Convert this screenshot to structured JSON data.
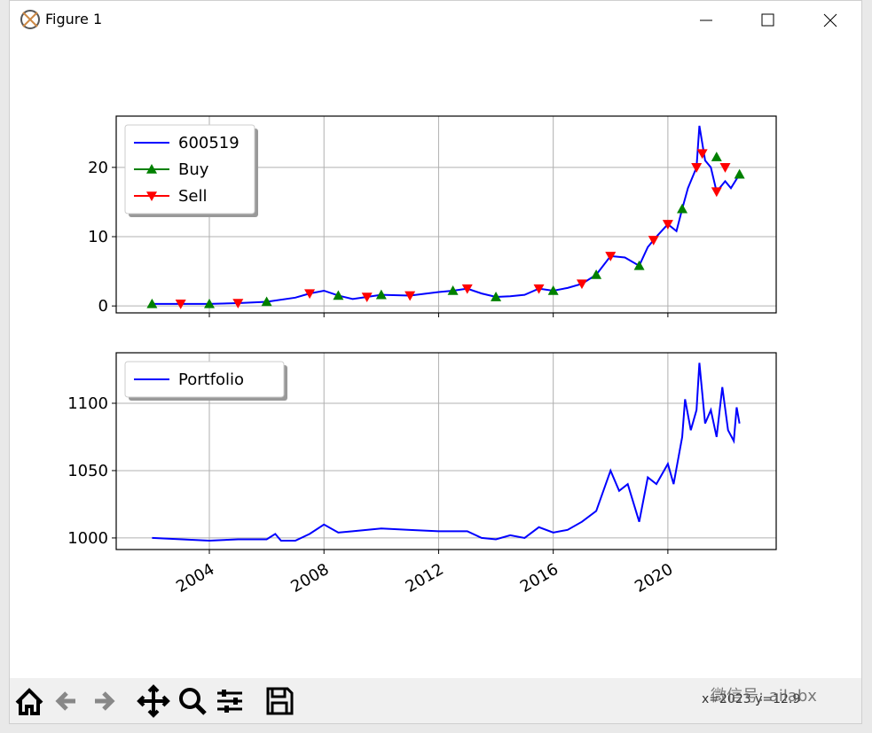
{
  "window": {
    "title": "Figure 1",
    "status": "x=2023 y=12.9",
    "watermark": "微信号: ailabx"
  },
  "chart_data": [
    {
      "type": "line",
      "legend": "upper left",
      "grid": true,
      "show_xtick_labels": false,
      "xlim": [
        2000.75,
        2023.78
      ],
      "ylim": [
        -1,
        27.4
      ],
      "xticks": [
        2004,
        2008,
        2012,
        2016,
        2020
      ],
      "yticks": [
        0,
        10,
        20
      ],
      "series": [
        {
          "name": "600519",
          "color": "#0000ff",
          "x": [
            2002,
            2003,
            2004,
            2005,
            2006,
            2007,
            2007.5,
            2008,
            2008.5,
            2009,
            2009.5,
            2010,
            2011,
            2012,
            2012.5,
            2013,
            2013.5,
            2014,
            2014.5,
            2015,
            2015.5,
            2016,
            2016.5,
            2017,
            2017.5,
            2018,
            2018.5,
            2019,
            2019.3,
            2019.6,
            2020,
            2020.3,
            2020.5,
            2020.7,
            2021,
            2021.1,
            2021.3,
            2021.5,
            2021.7,
            2022,
            2022.2,
            2022.5
          ],
          "values": [
            0.3,
            0.3,
            0.3,
            0.4,
            0.6,
            1.2,
            1.8,
            2.2,
            1.5,
            1.0,
            1.3,
            1.6,
            1.5,
            2.0,
            2.2,
            2.5,
            1.8,
            1.3,
            1.4,
            1.6,
            2.5,
            2.2,
            2.6,
            3.2,
            4.5,
            7.2,
            7.0,
            5.8,
            8.5,
            10.0,
            11.8,
            10.8,
            14,
            17,
            20,
            26,
            21,
            20,
            16.5,
            18,
            17,
            19
          ]
        },
        {
          "name": "Buy",
          "color": "#008000",
          "marker": "^",
          "x": [
            2002,
            2004,
            2006,
            2008.5,
            2010,
            2012.5,
            2014,
            2016,
            2017.5,
            2019,
            2020.5,
            2021.7,
            2022.5
          ],
          "values": [
            0.3,
            0.3,
            0.6,
            1.5,
            1.6,
            2.2,
            1.3,
            2.2,
            4.5,
            5.8,
            14,
            21.5,
            19
          ]
        },
        {
          "name": "Sell",
          "color": "#ff0000",
          "marker": "v",
          "x": [
            2003,
            2005,
            2007.5,
            2009.5,
            2011,
            2013,
            2015.5,
            2017,
            2018,
            2019.5,
            2020,
            2021,
            2021.2,
            2021.7,
            2022
          ],
          "values": [
            0.3,
            0.4,
            1.8,
            1.3,
            1.5,
            2.5,
            2.5,
            3.2,
            7.2,
            9.5,
            11.8,
            20,
            22,
            16.5,
            20
          ]
        }
      ]
    },
    {
      "type": "line",
      "legend": "upper left",
      "grid": true,
      "show_xtick_labels": true,
      "xlim": [
        2000.75,
        2023.78
      ],
      "ylim": [
        991.4,
        1137.5
      ],
      "xticks": [
        2004,
        2008,
        2012,
        2016,
        2020
      ],
      "yticks": [
        1000,
        1050,
        1100
      ],
      "series": [
        {
          "name": "Portfolio",
          "color": "#0000ff",
          "x": [
            2002,
            2004,
            2005,
            2006,
            2006.3,
            2006.5,
            2007,
            2007.5,
            2008,
            2008.5,
            2009,
            2010,
            2011,
            2012,
            2013,
            2013.5,
            2014,
            2014.5,
            2015,
            2015.5,
            2016,
            2016.5,
            2017,
            2017.5,
            2018,
            2018.3,
            2018.6,
            2019,
            2019.3,
            2019.6,
            2020,
            2020.2,
            2020.5,
            2020.6,
            2020.8,
            2021,
            2021.1,
            2021.3,
            2021.5,
            2021.7,
            2021.9,
            2022.1,
            2022.3,
            2022.4,
            2022.5
          ],
          "values": [
            1000,
            998,
            999,
            999,
            1003,
            998,
            998,
            1003,
            1010,
            1004,
            1005,
            1007,
            1006,
            1005,
            1005,
            1000,
            999,
            1002,
            1000,
            1008,
            1004,
            1006,
            1012,
            1020,
            1050,
            1035,
            1040,
            1012,
            1045,
            1040,
            1055,
            1040,
            1075,
            1103,
            1080,
            1095,
            1130,
            1085,
            1095,
            1075,
            1112,
            1080,
            1072,
            1097,
            1085
          ]
        }
      ]
    }
  ]
}
